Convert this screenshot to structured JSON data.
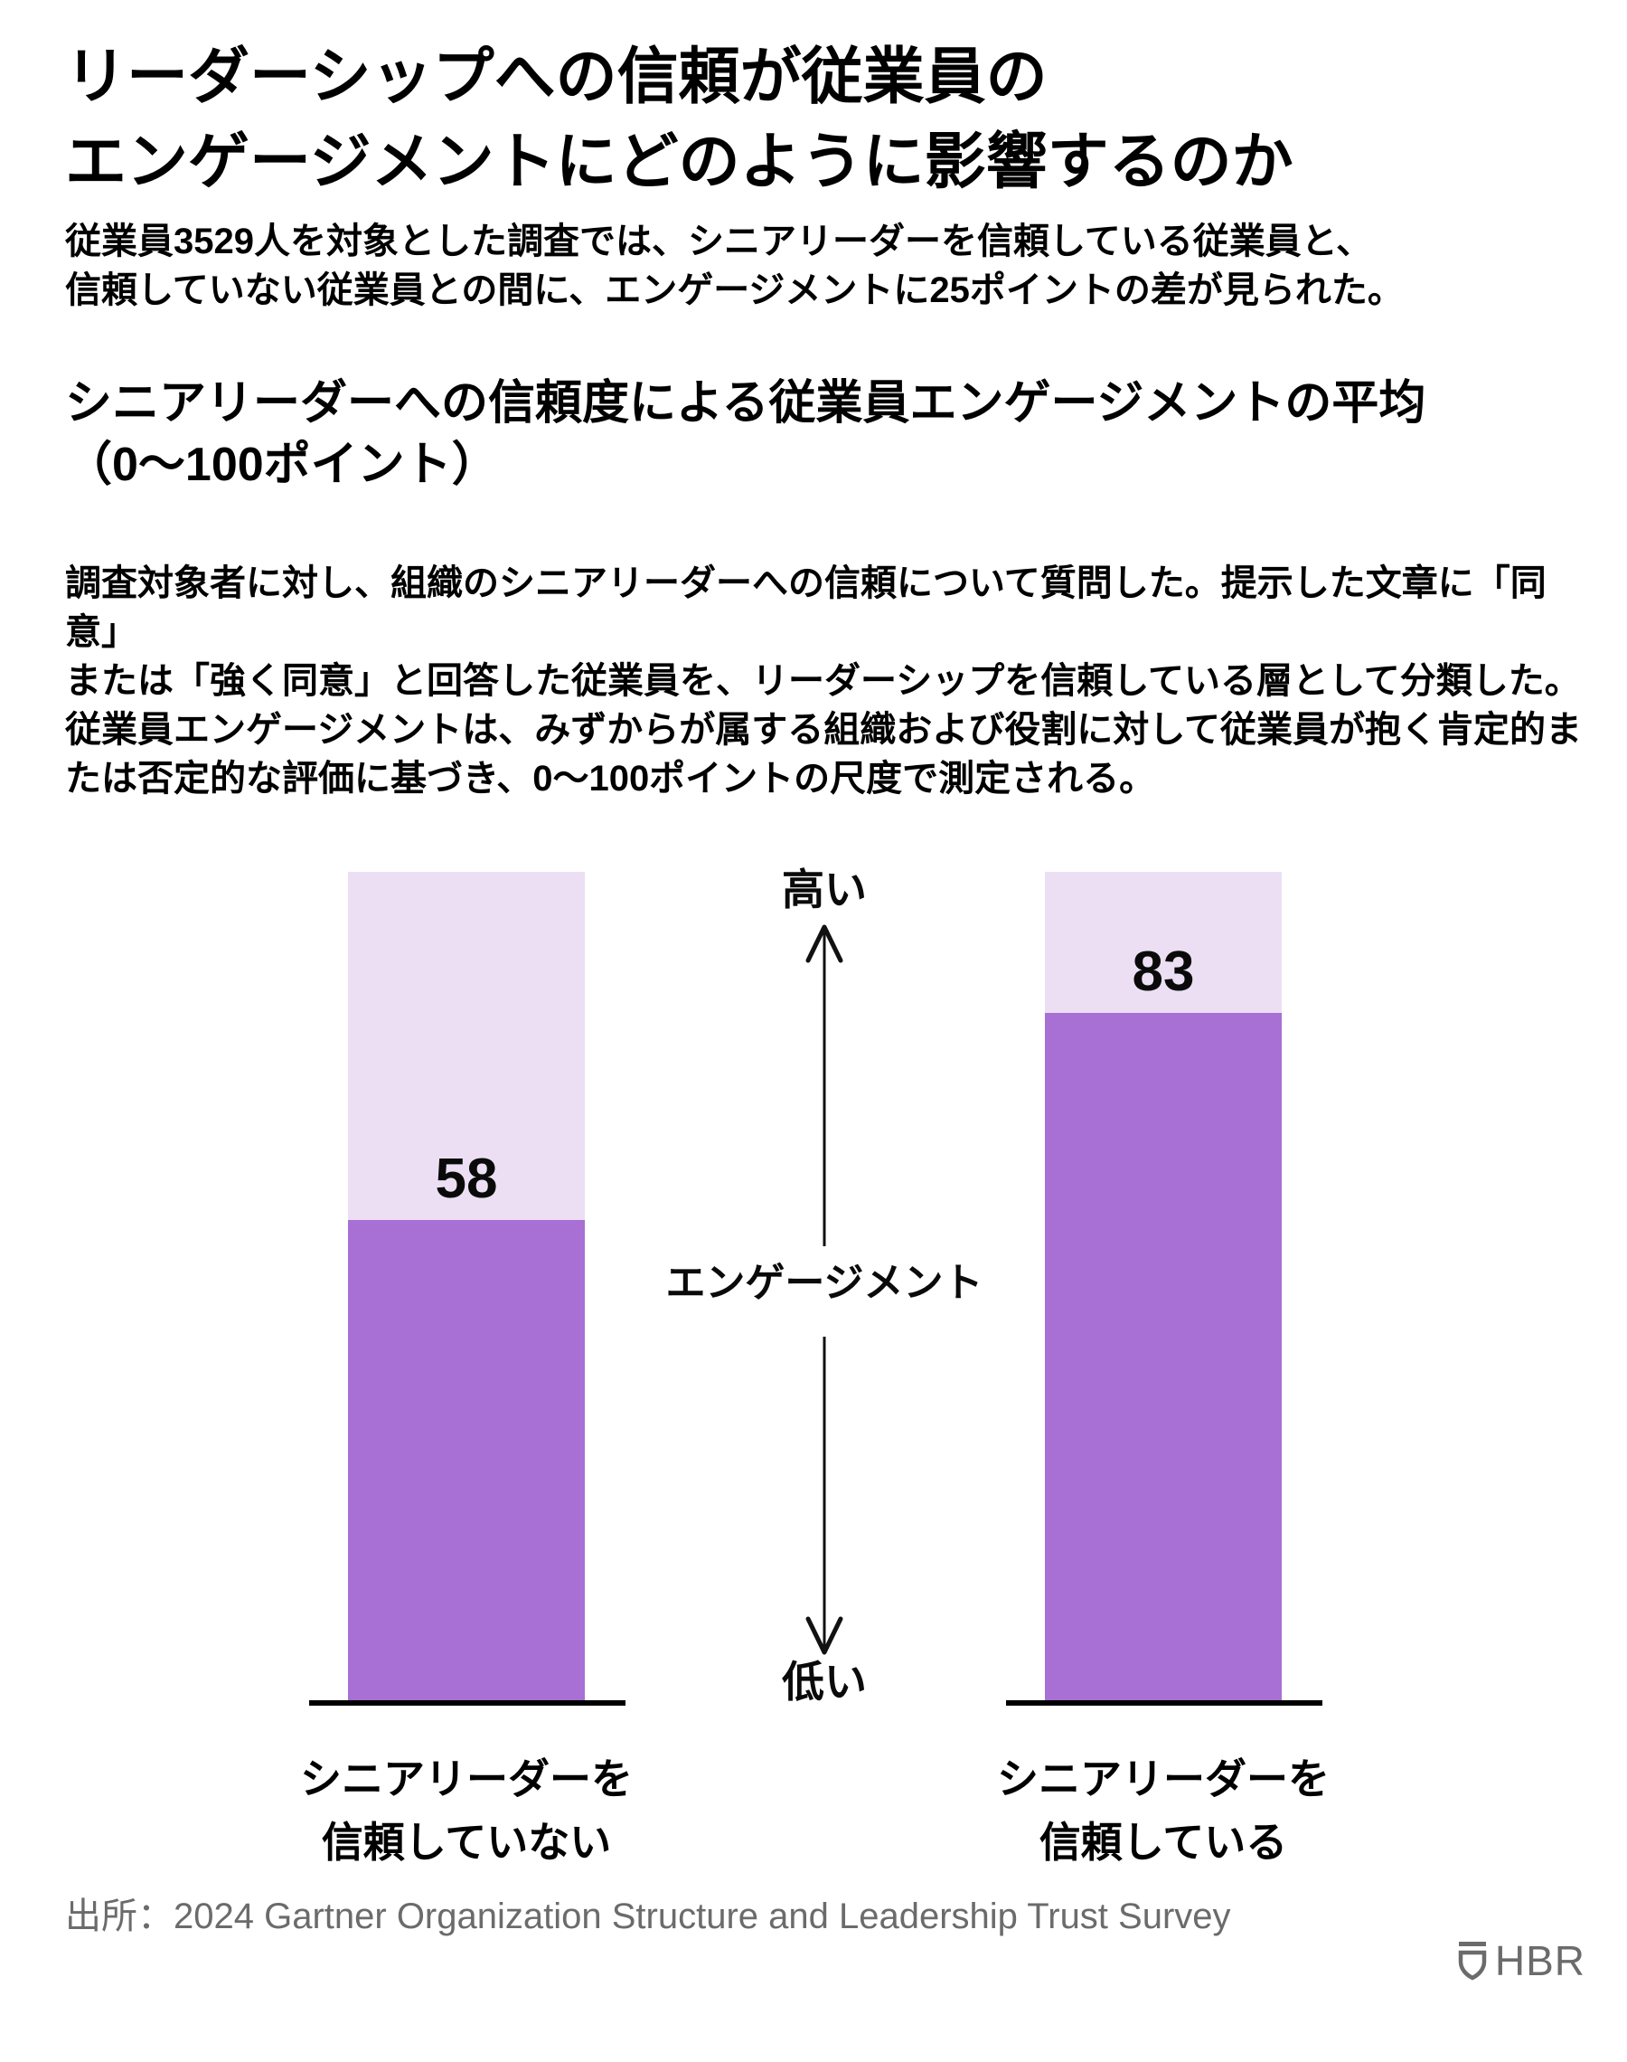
{
  "header": {
    "title_line1": "リーダーシップへの信頼が従業員の",
    "title_line2": "エンゲージメントにどのように影響するのか",
    "subtitle_line1": "従業員3529人を対象とした調査では、シニアリーダーを信頼している従業員と、",
    "subtitle_line2": "信頼していない従業員との間に、エンゲージメントに25ポイントの差が見られた。"
  },
  "section": {
    "heading_line1": "シニアリーダーへの信頼度による従業員エンゲージメントの平均",
    "heading_line2": "（0～100ポイント）",
    "body_line1": "調査対象者に対し、組織のシニアリーダーへの信頼について質問した。提示した文章に「同意」",
    "body_line2": "または「強く同意」と回答した従業員を、リーダーシップを信頼している層として分類した。",
    "body_line3": "従業員エンゲージメントは、みずからが属する組織および役割に対して従業員が抱く肯定的ま",
    "body_line4": "たは否定的な評価に基づき、0～100ポイントの尺度で測定される。"
  },
  "chart_data": {
    "type": "bar",
    "title": "シニアリーダーへの信頼度による従業員エンゲージメントの平均（0～100ポイント）",
    "categories": [
      "シニアリーダーを信頼していない",
      "シニアリーダーを信頼している"
    ],
    "values": [
      58,
      83
    ],
    "ylim": [
      0,
      100
    ],
    "grid": false,
    "legend": "none",
    "axis_annotation": {
      "high": "高い",
      "center": "エンゲージメント",
      "low": "低い"
    },
    "bar_color": "#a86fd4",
    "track_color": "#ecdff4"
  },
  "bars": [
    {
      "value": "58",
      "label_line1": "シニアリーダーを",
      "label_line2": "信頼していない"
    },
    {
      "value": "83",
      "label_line1": "シニアリーダーを",
      "label_line2": "信頼している"
    }
  ],
  "footer": {
    "source": "出所：2024 Gartner Organization Structure and Leadership Trust Survey",
    "logo_text": "HBR",
    "logo_color": "#6b6b6b"
  }
}
